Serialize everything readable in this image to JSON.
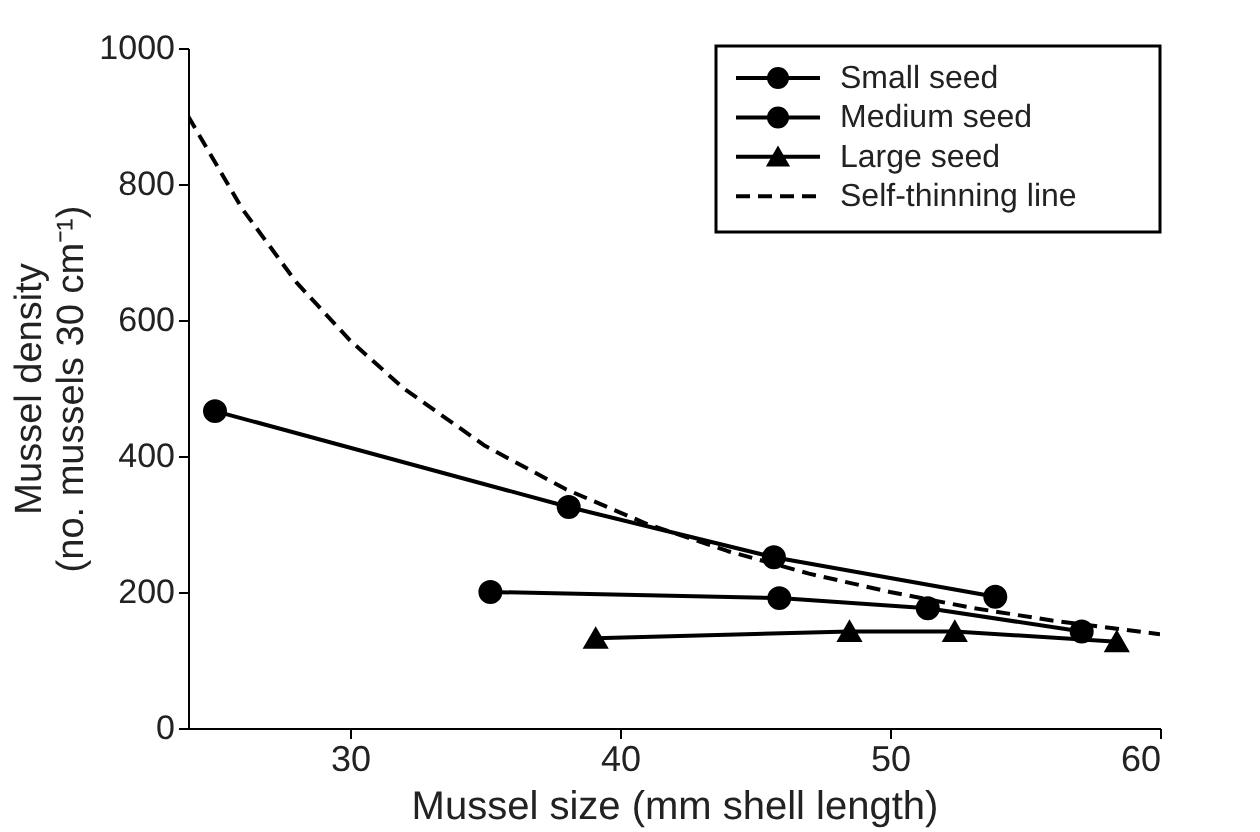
{
  "chart_data": {
    "type": "line",
    "xlabel": "Mussel size (mm shell length)",
    "ylabel": "Mussel density\n(no. mussels 30 cm⁻¹)",
    "xlim": [
      24,
      60
    ],
    "xticks": [
      30,
      40,
      50,
      60
    ],
    "ylim": [
      0,
      1000
    ],
    "yticks": [
      0,
      200,
      400,
      600,
      800,
      1000
    ],
    "grid": false,
    "legend": "top right",
    "line_style": "solid",
    "series": [
      {
        "name": "Small seed",
        "color": "#000000",
        "marker": "circle",
        "x": [
          25,
          38.1,
          45.7,
          53.9
        ],
        "values": [
          466,
          325,
          251,
          193
        ]
      },
      {
        "name": "Medium seed",
        "color": "#000000",
        "marker": "circle",
        "x": [
          35.2,
          45.9,
          51.4,
          57.1
        ],
        "values": [
          200,
          191,
          176,
          142
        ]
      },
      {
        "name": "Large seed",
        "color": "#000000",
        "marker": "triangle",
        "x": [
          39.1,
          48.5,
          52.4,
          58.4
        ],
        "values": [
          132,
          142,
          142,
          127
        ]
      },
      {
        "name": "Self-thinning line",
        "color": "#000000",
        "marker": "none",
        "line_style": "dashed",
        "x": [
          24,
          26,
          28,
          30,
          32,
          35,
          38,
          41,
          44,
          47,
          50,
          53,
          56,
          60
        ],
        "values": [
          900,
          764,
          656,
          570,
          499,
          415,
          351,
          300,
          260,
          227,
          200,
          177,
          158,
          138
        ]
      }
    ]
  }
}
